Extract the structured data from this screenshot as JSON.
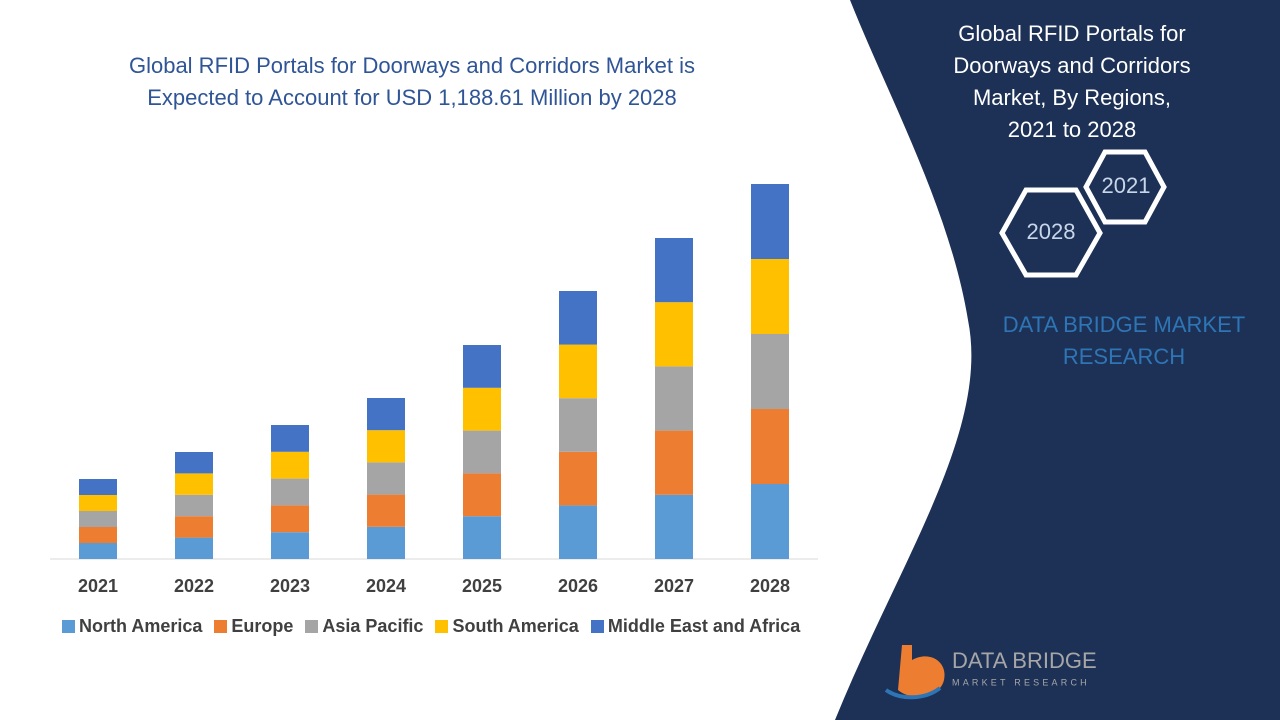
{
  "chart_data": {
    "type": "bar",
    "stacked": true,
    "title": [
      "Global RFID Portals for Doorways and Corridors Market is",
      "Expected to Account for USD 1,188.61 Million by 2028"
    ],
    "categories": [
      "2021",
      "2022",
      "2023",
      "2024",
      "2025",
      "2026",
      "2027",
      "2028"
    ],
    "series": [
      {
        "name": "North America",
        "color": "#5b9bd5",
        "values": [
          16,
          21.4,
          26.8,
          32.2,
          42.8,
          53.6,
          64.2,
          75
        ]
      },
      {
        "name": "Europe",
        "color": "#ed7d31",
        "values": [
          16,
          21.4,
          26.8,
          32.2,
          42.8,
          53.6,
          64.2,
          75
        ]
      },
      {
        "name": "Asia Pacific",
        "color": "#a5a5a5",
        "values": [
          16,
          21.4,
          26.8,
          32.2,
          42.8,
          53.6,
          64.2,
          75
        ]
      },
      {
        "name": "South America",
        "color": "#ffc000",
        "values": [
          16,
          21.4,
          26.8,
          32.2,
          42.8,
          53.6,
          64.2,
          75
        ]
      },
      {
        "name": "Middle East and Africa",
        "color": "#4472c4",
        "values": [
          16,
          21.4,
          26.8,
          32.2,
          42.8,
          53.6,
          64.2,
          75
        ]
      }
    ]
  },
  "side_panel": {
    "title": [
      "Global RFID Portals for",
      "Doorways and Corridors",
      "Market, By Regions,",
      "2021 to 2028"
    ],
    "hex_start": "2021",
    "hex_end": "2028",
    "brand": [
      "DATA BRIDGE MARKET",
      "RESEARCH"
    ]
  },
  "logo": {
    "name": "DATA BRIDGE",
    "tagline": "MARKET RESEARCH"
  }
}
